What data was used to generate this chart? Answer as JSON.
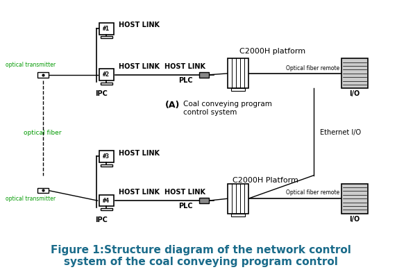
{
  "title": "Figure 1:Structure diagram of the network control\nsystem of the coal conveying program control",
  "title_color": "#1a6b8a",
  "title_fontsize": 11,
  "bg_color": "#ffffff",
  "diagram_color": "#000000",
  "top_section": {
    "computer1_label": "#1",
    "computer2_label": "#2",
    "host_link_top": "HOST LINK",
    "host_link_mid1": "HOST LINK",
    "host_link_mid2": "HOST LINK",
    "ipc_label": "IPC",
    "plc_label": "PLC",
    "c2000h_label": "C2000H platform",
    "optical_fiber_remote": "Optical fiber remote",
    "io_label": "I/O",
    "optical_transmitter_label": "optical transmitter",
    "center_label_a": "(A)",
    "center_label_text": "Coal conveying program\ncontrol system"
  },
  "bottom_section": {
    "computer3_label": "#3",
    "computer4_label": "#4",
    "host_link_top": "HOST LINK",
    "host_link_mid1": "HOST LINK",
    "host_link_mid2": "HOST LINK",
    "ipc_label": "IPC",
    "plc_label": "PLC",
    "c2000h_label": "C2000H Platform",
    "optical_fiber_remote": "Optical fiber remote",
    "io_label": "I/O",
    "optical_transmitter_label": "optical transmitter"
  },
  "side_labels": {
    "optical_fiber": "optical fiber",
    "ethernet_io": "Ethernet I/O"
  }
}
